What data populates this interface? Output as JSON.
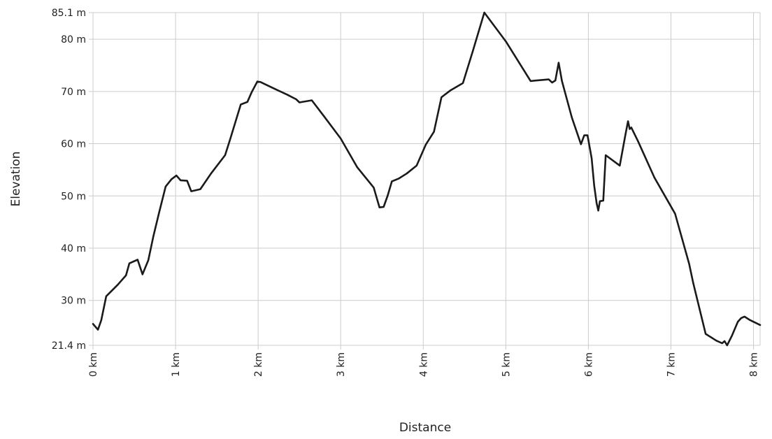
{
  "chart_data": {
    "type": "line",
    "title": "",
    "xlabel": "Distance",
    "ylabel": "Elevation",
    "xlim": [
      0,
      8.08
    ],
    "ylim": [
      21.4,
      85.1
    ],
    "grid": true,
    "legend": "none",
    "line_color": "#1a1a1a",
    "grid_color": "#cccccc",
    "x_ticks": [
      {
        "value": 0,
        "label": "0 km"
      },
      {
        "value": 1,
        "label": "1 km"
      },
      {
        "value": 2,
        "label": "2 km"
      },
      {
        "value": 3,
        "label": "3 km"
      },
      {
        "value": 4,
        "label": "4 km"
      },
      {
        "value": 5,
        "label": "5 km"
      },
      {
        "value": 6,
        "label": "6 km"
      },
      {
        "value": 7,
        "label": "7 km"
      },
      {
        "value": 8,
        "label": "8 km"
      }
    ],
    "y_ticks": [
      {
        "value": 21.4,
        "label": "21.4 m"
      },
      {
        "value": 30,
        "label": "30 m"
      },
      {
        "value": 40,
        "label": "40 m"
      },
      {
        "value": 50,
        "label": "50 m"
      },
      {
        "value": 60,
        "label": "60 m"
      },
      {
        "value": 70,
        "label": "70 m"
      },
      {
        "value": 80,
        "label": "80 m"
      },
      {
        "value": 85.1,
        "label": "85.1 m"
      }
    ],
    "series": [
      {
        "x": [
          0,
          0.06,
          0.1,
          0.16,
          0.3,
          0.4,
          0.44,
          0.54,
          0.6,
          0.67,
          0.73,
          0.8,
          0.88,
          0.95,
          1.01,
          1.06,
          1.14,
          1.19,
          1.3,
          1.43,
          1.6,
          1.66,
          1.79,
          1.87,
          1.92,
          1.99,
          2.03,
          2.2,
          2.35,
          2.46,
          2.5,
          2.65,
          2.8,
          3.0,
          3.2,
          3.4,
          3.47,
          3.52,
          3.57,
          3.62,
          3.7,
          3.8,
          3.92,
          4.03,
          4.13,
          4.22,
          4.33,
          4.48,
          4.6,
          4.74,
          5.0,
          5.3,
          5.52,
          5.56,
          5.6,
          5.64,
          5.68,
          5.8,
          5.91,
          5.95,
          5.99,
          6.04,
          6.07,
          6.1,
          6.12,
          6.14,
          6.18,
          6.21,
          6.38,
          6.45,
          6.48,
          6.5,
          6.52,
          6.6,
          6.8,
          7.05,
          7.22,
          7.27,
          7.42,
          7.55,
          7.62,
          7.65,
          7.68,
          7.74,
          7.81,
          7.85,
          7.89,
          7.95,
          8.08
        ],
        "y": [
          25.5,
          24.4,
          26.2,
          30.8,
          33.0,
          34.8,
          37.1,
          37.8,
          35.0,
          37.7,
          42.2,
          46.8,
          51.8,
          53.2,
          53.9,
          53.0,
          52.9,
          50.9,
          51.3,
          54.3,
          57.8,
          60.8,
          67.5,
          68.0,
          69.8,
          71.9,
          71.8,
          70.5,
          69.4,
          68.5,
          67.9,
          68.3,
          65.2,
          61.0,
          55.5,
          51.6,
          47.8,
          47.9,
          50.1,
          52.8,
          53.3,
          54.3,
          55.8,
          59.8,
          62.3,
          68.9,
          70.2,
          71.6,
          77.7,
          85.1,
          79.6,
          72.0,
          72.3,
          71.7,
          72.1,
          75.5,
          72.0,
          65.0,
          59.9,
          61.6,
          61.6,
          57.2,
          52.0,
          48.6,
          47.2,
          49.0,
          49.1,
          57.8,
          55.8,
          61.8,
          64.3,
          62.8,
          63.1,
          60.5,
          53.5,
          46.6,
          37.0,
          33.3,
          23.6,
          22.3,
          21.8,
          22.2,
          21.4,
          23.3,
          25.9,
          26.6,
          26.9,
          26.3,
          25.3
        ]
      }
    ]
  }
}
